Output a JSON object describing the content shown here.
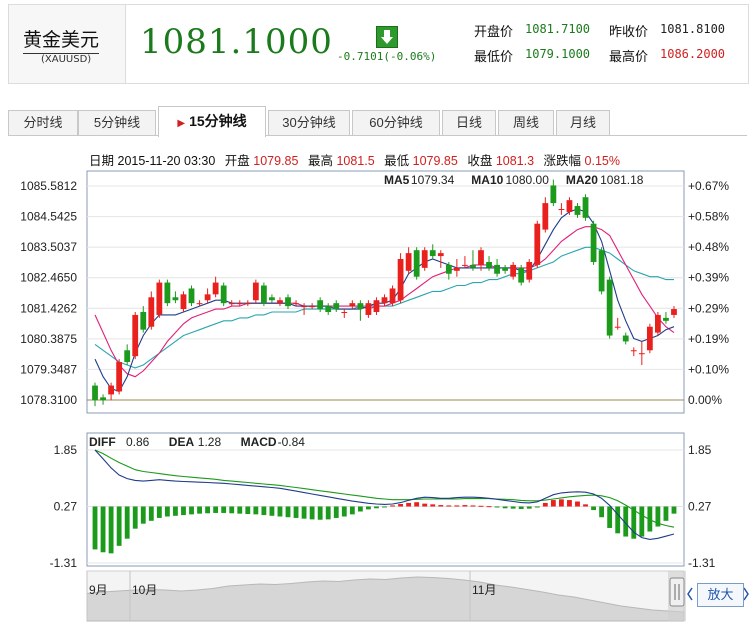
{
  "header": {
    "name": "黄金美元",
    "code": "(XAUUSD)",
    "price": "1081.1000",
    "change": "-0.7101(-0.06%)",
    "trend_icon": "down-arrow-icon",
    "open_label": "开盘价",
    "open_value": "1081.7100",
    "prev_close_label": "昨收价",
    "prev_close_value": "1081.8100",
    "low_label": "最低价",
    "low_value": "1079.1000",
    "high_label": "最高价",
    "high_value": "1086.2000"
  },
  "tabs": [
    {
      "label": "分时线"
    },
    {
      "label": "5分钟线"
    },
    {
      "label": "15分钟线",
      "active": true
    },
    {
      "label": "30分钟线"
    },
    {
      "label": "60分钟线"
    },
    {
      "label": "日线"
    },
    {
      "label": "周线"
    },
    {
      "label": "月线"
    }
  ],
  "info": {
    "date_label": "日期",
    "date_value": "2015-11-20 03:30",
    "open_label": "开盘",
    "open_value": "1079.85",
    "high_label": "最高",
    "high_value": "1081.5",
    "low_label": "最低",
    "low_value": "1079.85",
    "close_label": "收盘",
    "close_value": "1081.3",
    "pct_label": "涨跌幅",
    "pct_value": "0.15%"
  },
  "colors": {
    "up": "#e8201e",
    "down": "#1b9a1b",
    "ma5": "#1f3d8a",
    "ma10": "#e0207a",
    "ma20": "#2aa6b0",
    "diff": "#1f3d8a",
    "dea": "#1b9a1b"
  },
  "zoom_label": "放大",
  "chart_data": [
    {
      "type": "candlestick",
      "y_ticks_left": [
        "1085.5812",
        "1084.5425",
        "1083.5037",
        "1082.4650",
        "1081.4262",
        "1080.3875",
        "1079.3487",
        "1078.3100"
      ],
      "y_ticks_right": [
        "+0.67%",
        "+0.58%",
        "+0.48%",
        "+0.39%",
        "+0.29%",
        "+0.19%",
        "+0.10%",
        "0.00%"
      ],
      "ylim": [
        1078.31,
        1085.5812
      ],
      "legend": [
        {
          "name": "MA5",
          "value": "1079.34"
        },
        {
          "name": "MA10",
          "value": "1080.00"
        },
        {
          "name": "MA20",
          "value": "1081.18"
        }
      ],
      "candles": [
        [
          1078.8,
          1078.3,
          1078.9,
          1078.1
        ],
        [
          1078.4,
          1078.3,
          1078.5,
          1078.15
        ],
        [
          1078.5,
          1078.8,
          1078.9,
          1078.3
        ],
        [
          1078.6,
          1079.6,
          1079.7,
          1078.5
        ],
        [
          1080.0,
          1079.6,
          1080.2,
          1079.5
        ],
        [
          1079.8,
          1081.2,
          1081.3,
          1079.7
        ],
        [
          1081.3,
          1080.7,
          1081.5,
          1080.6
        ],
        [
          1080.8,
          1081.8,
          1082.0,
          1080.7
        ],
        [
          1081.2,
          1082.3,
          1082.4,
          1081.1
        ],
        [
          1082.3,
          1081.6,
          1082.4,
          1081.5
        ],
        [
          1081.8,
          1081.7,
          1082.0,
          1081.6
        ],
        [
          1081.4,
          1081.9,
          1082.0,
          1081.3
        ],
        [
          1082.1,
          1081.6,
          1082.2,
          1081.5
        ],
        [
          1081.6,
          1081.6,
          1081.7,
          1081.5
        ],
        [
          1081.7,
          1081.9,
          1082.1,
          1081.6
        ],
        [
          1081.9,
          1082.3,
          1082.5,
          1081.8
        ],
        [
          1082.2,
          1081.6,
          1082.3,
          1081.5
        ],
        [
          1081.6,
          1081.6,
          1081.7,
          1081.5
        ],
        [
          1081.6,
          1081.6,
          1081.7,
          1081.5
        ],
        [
          1081.6,
          1081.6,
          1081.7,
          1081.5
        ],
        [
          1081.7,
          1082.3,
          1082.4,
          1081.6
        ],
        [
          1082.2,
          1081.6,
          1082.3,
          1081.5
        ],
        [
          1081.8,
          1081.7,
          1081.9,
          1081.6
        ],
        [
          1081.6,
          1081.7,
          1081.8,
          1081.5
        ],
        [
          1081.8,
          1081.5,
          1081.9,
          1081.4
        ],
        [
          1081.6,
          1081.6,
          1081.7,
          1081.5
        ],
        [
          1081.5,
          1081.5,
          1081.6,
          1081.2
        ],
        [
          1081.5,
          1081.5,
          1081.6,
          1081.4
        ],
        [
          1081.7,
          1081.4,
          1081.8,
          1081.3
        ],
        [
          1081.5,
          1081.3,
          1081.6,
          1081.2
        ],
        [
          1081.6,
          1081.4,
          1081.7,
          1081.3
        ],
        [
          1081.3,
          1081.3,
          1081.4,
          1081.1
        ],
        [
          1081.5,
          1081.6,
          1081.7,
          1081.4
        ],
        [
          1081.6,
          1081.4,
          1081.7,
          1081.0
        ],
        [
          1081.2,
          1081.6,
          1081.7,
          1081.1
        ],
        [
          1081.3,
          1081.7,
          1081.8,
          1081.2
        ],
        [
          1081.6,
          1081.8,
          1081.9,
          1081.5
        ],
        [
          1081.6,
          1082.1,
          1082.2,
          1081.5
        ],
        [
          1081.7,
          1083.1,
          1083.3,
          1081.6
        ],
        [
          1082.7,
          1083.3,
          1083.5,
          1082.6
        ],
        [
          1083.4,
          1082.5,
          1083.5,
          1082.4
        ],
        [
          1082.8,
          1083.4,
          1083.5,
          1082.7
        ],
        [
          1083.4,
          1083.2,
          1083.6,
          1083.1
        ],
        [
          1083.2,
          1083.3,
          1083.4,
          1082.8
        ],
        [
          1082.9,
          1082.6,
          1083.0,
          1082.4
        ],
        [
          1082.7,
          1082.8,
          1083.1,
          1082.5
        ],
        [
          1082.9,
          1082.9,
          1083.2,
          1082.8
        ],
        [
          1082.9,
          1082.8,
          1083.4,
          1082.7
        ],
        [
          1082.9,
          1083.4,
          1083.5,
          1082.7
        ],
        [
          1083.0,
          1082.8,
          1083.2,
          1082.7
        ],
        [
          1082.9,
          1082.6,
          1083.1,
          1082.5
        ],
        [
          1082.8,
          1082.7,
          1082.9,
          1082.6
        ],
        [
          1082.5,
          1082.9,
          1083.0,
          1082.4
        ],
        [
          1082.8,
          1082.3,
          1082.9,
          1082.2
        ],
        [
          1082.4,
          1083.0,
          1083.1,
          1082.3
        ],
        [
          1082.9,
          1084.3,
          1084.4,
          1082.8
        ],
        [
          1084.1,
          1085.0,
          1085.2,
          1084.0
        ],
        [
          1085.6,
          1085.0,
          1085.8,
          1084.9
        ],
        [
          1084.8,
          1084.8,
          1085.0,
          1084.6
        ],
        [
          1084.7,
          1085.1,
          1085.2,
          1084.6
        ],
        [
          1084.9,
          1084.6,
          1085.0,
          1084.5
        ],
        [
          1085.2,
          1084.5,
          1085.3,
          1084.4
        ],
        [
          1084.3,
          1083.0,
          1084.4,
          1082.9
        ],
        [
          1083.4,
          1082.0,
          1083.5,
          1081.9
        ],
        [
          1082.4,
          1080.5,
          1082.5,
          1080.4
        ],
        [
          1080.8,
          1080.8,
          1081.1,
          1080.7
        ],
        [
          1080.5,
          1080.3,
          1080.6,
          1080.2
        ],
        [
          1080.0,
          1080.0,
          1080.1,
          1079.8
        ],
        [
          1079.9,
          1079.9,
          1080.3,
          1079.5
        ],
        [
          1080.0,
          1080.8,
          1080.9,
          1079.9
        ],
        [
          1080.6,
          1081.2,
          1081.3,
          1080.5
        ],
        [
          1081.1,
          1081.0,
          1081.3,
          1080.9
        ],
        [
          1081.2,
          1081.4,
          1081.5,
          1081.1
        ]
      ],
      "ma5": [
        1079.7,
        1079.1,
        1078.7,
        1078.6,
        1079.1,
        1079.9,
        1080.5,
        1080.9,
        1081.2,
        1081.2,
        1081.2,
        1081.3,
        1081.4,
        1081.5,
        1081.6,
        1081.7,
        1081.7,
        1081.6,
        1081.6,
        1081.6,
        1081.6,
        1081.6,
        1081.6,
        1081.6,
        1081.6,
        1081.5,
        1081.5,
        1081.5,
        1081.5,
        1081.5,
        1081.4,
        1081.4,
        1081.4,
        1081.4,
        1081.5,
        1081.6,
        1081.6,
        1081.7,
        1082.1,
        1082.6,
        1082.8,
        1083.0,
        1083.1,
        1083.0,
        1082.9,
        1082.8,
        1082.8,
        1082.8,
        1082.8,
        1082.8,
        1082.8,
        1082.8,
        1082.8,
        1082.7,
        1082.7,
        1083.1,
        1083.6,
        1084.1,
        1084.5,
        1084.7,
        1084.8,
        1084.7,
        1084.3,
        1083.7,
        1082.7,
        1081.7,
        1081.0,
        1080.4,
        1080.3,
        1080.4,
        1080.5,
        1080.7,
        1080.8
      ],
      "ma10": [
        1081.2,
        1080.6,
        1080.0,
        1079.5,
        1079.2,
        1079.1,
        1079.3,
        1079.6,
        1079.9,
        1080.3,
        1080.6,
        1080.9,
        1081.1,
        1081.2,
        1081.3,
        1081.4,
        1081.4,
        1081.5,
        1081.5,
        1081.6,
        1081.6,
        1081.6,
        1081.6,
        1081.6,
        1081.6,
        1081.6,
        1081.5,
        1081.5,
        1081.5,
        1081.5,
        1081.5,
        1081.5,
        1081.5,
        1081.5,
        1081.4,
        1081.5,
        1081.5,
        1081.6,
        1081.7,
        1081.9,
        1082.1,
        1082.3,
        1082.5,
        1082.6,
        1082.7,
        1082.8,
        1082.8,
        1082.9,
        1082.9,
        1082.9,
        1082.8,
        1082.8,
        1082.8,
        1082.8,
        1082.8,
        1082.9,
        1083.1,
        1083.4,
        1083.7,
        1083.9,
        1084.1,
        1084.2,
        1084.2,
        1084.1,
        1083.9,
        1083.4,
        1082.9,
        1082.4,
        1081.9,
        1081.5,
        1081.1,
        1080.8,
        1080.6
      ],
      "ma20": [
        1080.2,
        1080.0,
        1079.8,
        1079.6,
        1079.5,
        1079.4,
        1079.5,
        1079.7,
        1079.9,
        1080.1,
        1080.3,
        1080.5,
        1080.6,
        1080.7,
        1080.8,
        1080.9,
        1081.0,
        1081.0,
        1081.1,
        1081.1,
        1081.2,
        1081.2,
        1081.3,
        1081.3,
        1081.3,
        1081.3,
        1081.4,
        1081.4,
        1081.4,
        1081.4,
        1081.4,
        1081.4,
        1081.4,
        1081.5,
        1081.5,
        1081.5,
        1081.5,
        1081.5,
        1081.6,
        1081.7,
        1081.8,
        1081.9,
        1082.0,
        1082.0,
        1082.1,
        1082.2,
        1082.2,
        1082.3,
        1082.3,
        1082.4,
        1082.4,
        1082.5,
        1082.6,
        1082.6,
        1082.7,
        1082.8,
        1082.9,
        1083.0,
        1083.2,
        1083.3,
        1083.4,
        1083.5,
        1083.5,
        1083.4,
        1083.3,
        1083.1,
        1082.9,
        1082.7,
        1082.6,
        1082.5,
        1082.5,
        1082.4,
        1082.4
      ]
    },
    {
      "type": "macd",
      "legend": [
        {
          "name": "DIFF",
          "value": "0.86"
        },
        {
          "name": "DEA",
          "value": "1.28"
        },
        {
          "name": "MACD",
          "value": "-0.84"
        }
      ],
      "y_ticks": [
        "1.85",
        "0.27",
        "-1.31"
      ],
      "ylim": [
        -1.31,
        1.85
      ],
      "diff": [
        1.85,
        1.6,
        1.35,
        1.15,
        1.05,
        1.0,
        0.98,
        1.0,
        1.02,
        1.0,
        0.98,
        0.97,
        0.96,
        0.95,
        0.94,
        0.93,
        0.92,
        0.9,
        0.88,
        0.86,
        0.84,
        0.82,
        0.8,
        0.78,
        0.74,
        0.7,
        0.66,
        0.62,
        0.58,
        0.54,
        0.5,
        0.46,
        0.42,
        0.39,
        0.36,
        0.34,
        0.33,
        0.34,
        0.38,
        0.44,
        0.5,
        0.53,
        0.52,
        0.5,
        0.5,
        0.52,
        0.53,
        0.53,
        0.52,
        0.5,
        0.47,
        0.44,
        0.41,
        0.38,
        0.37,
        0.4,
        0.5,
        0.6,
        0.65,
        0.67,
        0.68,
        0.67,
        0.62,
        0.5,
        0.3,
        0.05,
        -0.2,
        -0.45,
        -0.6,
        -0.65,
        -0.62,
        -0.56,
        -0.5
      ],
      "dea": [
        1.85,
        1.75,
        1.62,
        1.5,
        1.4,
        1.3,
        1.25,
        1.22,
        1.19,
        1.16,
        1.13,
        1.11,
        1.09,
        1.07,
        1.05,
        1.03,
        1.0,
        0.98,
        0.96,
        0.94,
        0.92,
        0.9,
        0.88,
        0.86,
        0.83,
        0.8,
        0.77,
        0.74,
        0.71,
        0.68,
        0.65,
        0.62,
        0.59,
        0.56,
        0.53,
        0.5,
        0.48,
        0.46,
        0.46,
        0.46,
        0.47,
        0.48,
        0.48,
        0.48,
        0.48,
        0.48,
        0.49,
        0.49,
        0.49,
        0.49,
        0.48,
        0.47,
        0.46,
        0.44,
        0.43,
        0.43,
        0.45,
        0.48,
        0.51,
        0.54,
        0.56,
        0.58,
        0.59,
        0.57,
        0.52,
        0.43,
        0.31,
        0.17,
        0.03,
        -0.1,
        -0.2,
        -0.26,
        -0.31
      ],
      "macd": [
        -1.2,
        -1.28,
        -1.31,
        -1.1,
        -0.9,
        -0.62,
        -0.48,
        -0.4,
        -0.32,
        -0.28,
        -0.26,
        -0.24,
        -0.22,
        -0.2,
        -0.19,
        -0.18,
        -0.18,
        -0.19,
        -0.2,
        -0.21,
        -0.22,
        -0.24,
        -0.26,
        -0.28,
        -0.3,
        -0.32,
        -0.34,
        -0.36,
        -0.37,
        -0.36,
        -0.32,
        -0.28,
        -0.22,
        -0.14,
        -0.08,
        -0.05,
        -0.02,
        0.03,
        0.07,
        0.1,
        0.12,
        0.08,
        0.06,
        0.04,
        0.03,
        0.03,
        0.04,
        0.03,
        0.02,
        0.01,
        -0.02,
        -0.05,
        -0.06,
        -0.07,
        -0.06,
        -0.02,
        0.1,
        0.18,
        0.2,
        0.18,
        0.14,
        0.06,
        -0.1,
        -0.3,
        -0.6,
        -0.75,
        -0.84,
        -0.9,
        -0.84,
        -0.7,
        -0.56,
        -0.4,
        -0.2
      ]
    }
  ],
  "navigator": {
    "labels": [
      "9月",
      "10月",
      "11月"
    ]
  }
}
